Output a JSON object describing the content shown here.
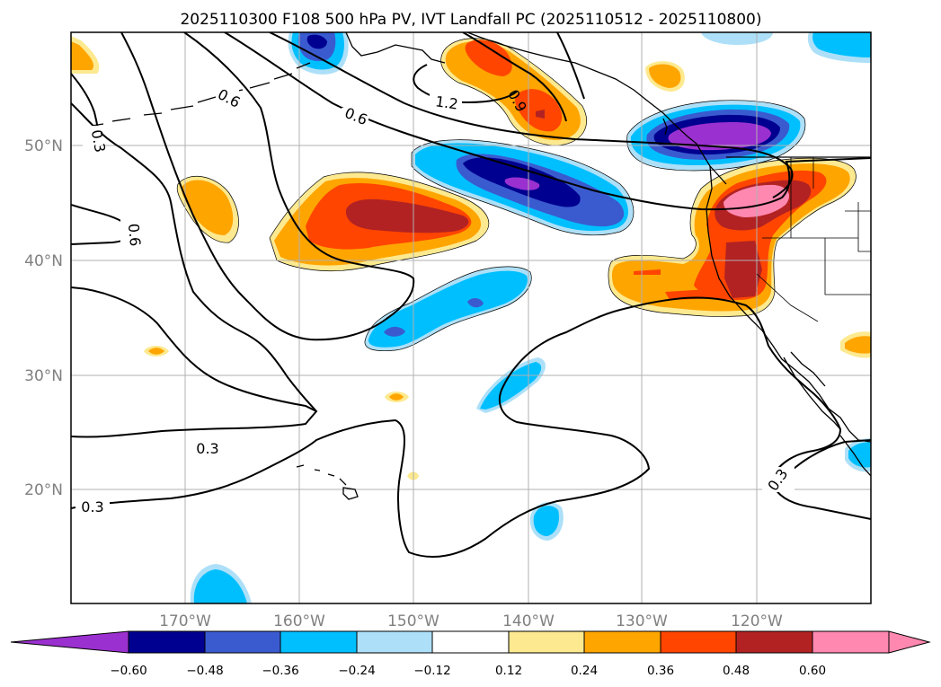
{
  "title": "2025110300 F108 500 hPa PV, IVT Landfall PC (2025110512 - 2025110800)",
  "axes": {
    "lat_labels": [
      "50°N",
      "40°N",
      "30°N",
      "20°N"
    ],
    "lon_labels": [
      "170°W",
      "160°W",
      "150°W",
      "140°W",
      "130°W",
      "120°W"
    ]
  },
  "contour_labels": [
    "0.6",
    "0.6",
    "0.9",
    "1.2",
    "0.3",
    "0.6",
    "0.3",
    "0.3",
    "0.3"
  ],
  "colorbar": {
    "ticks": [
      "−0.60",
      "−0.48",
      "−0.36",
      "−0.24",
      "−0.12",
      "0.12",
      "0.24",
      "0.36",
      "0.48",
      "0.60"
    ],
    "colors": [
      "#9b30d0",
      "#000090",
      "#3a5bd0",
      "#00bfff",
      "#ade0f8",
      "#ffffff",
      "#fde98f",
      "#ffa500",
      "#ff4500",
      "#b22222",
      "#ff88b0"
    ]
  },
  "fill_colors": {
    "neg_1": "#ade0f8",
    "neg_2": "#00bfff",
    "neg_3": "#3a5bd0",
    "neg_4": "#000090",
    "neg_5": "#9b30d0",
    "pos_1": "#fde98f",
    "pos_2": "#ffa500",
    "pos_3": "#ff4500",
    "pos_4": "#b22222",
    "pos_5": "#ff88b0"
  }
}
